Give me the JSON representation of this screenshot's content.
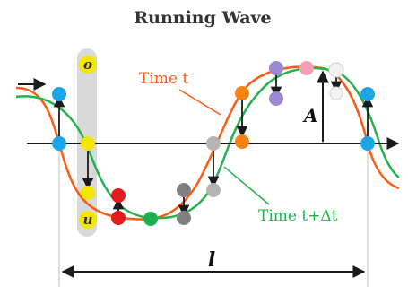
{
  "title": "Running Wave",
  "labels": {
    "point_o": "o",
    "point_u": "u",
    "time_t": "Time t",
    "time_t_dt": "Time t+Δt",
    "amplitude": "A",
    "wavelength": "l"
  },
  "colors": {
    "wave_t": "#ff5a14",
    "wave_t_dt": "#26b14e",
    "axis": "#1b1b1b",
    "vector": "#1b1b1b",
    "highlight_band": "#d9d9d9",
    "dot_cyan": "#1ba5e6",
    "dot_yellow": "#f5e600",
    "dot_red": "#e21b1b",
    "dot_green": "#1bb14e",
    "dot_gray": "#808080",
    "dot_gray_light": "#b4b4b4",
    "dot_orange": "#f58214",
    "dot_purple": "#9a8ad2",
    "dot_pink": "#f0a0b4",
    "dot_white": "#f2f2f2"
  }
}
